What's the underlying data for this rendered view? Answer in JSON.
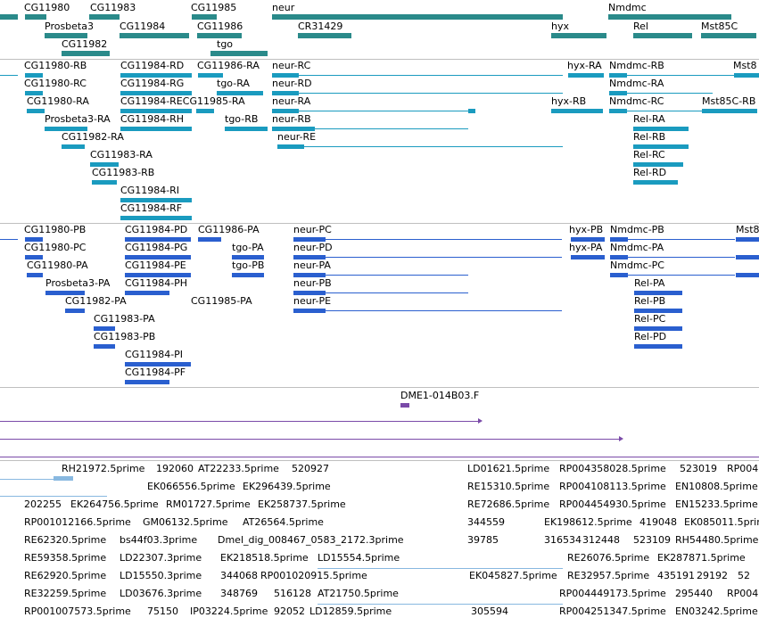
{
  "colors": {
    "gene": "#2a8a8a",
    "transcript": "#1a9bbf",
    "protein": "#2a5fcf",
    "clone": "#7a4aa8",
    "est": "#88b8e0",
    "separator": "#bfbfbf"
  },
  "genes": {
    "labels": [
      {
        "text": "CG11980"
      },
      {
        "text": "CG11983"
      },
      {
        "text": "CG11985"
      },
      {
        "text": "neur"
      },
      {
        "text": "Nmdmc"
      },
      {
        "text": "Prosbeta3"
      },
      {
        "text": "CG11984"
      },
      {
        "text": "CG11986"
      },
      {
        "text": "CR31429"
      },
      {
        "text": "hyx"
      },
      {
        "text": "Rel"
      },
      {
        "text": "Mst85C"
      },
      {
        "text": "CG11982"
      },
      {
        "text": "tgo"
      }
    ]
  },
  "transcripts": {
    "labels": [
      {
        "text": "CG11980-RB"
      },
      {
        "text": "CG11984-RD"
      },
      {
        "text": "CG11986-RA"
      },
      {
        "text": "neur-RC"
      },
      {
        "text": "hyx-RA"
      },
      {
        "text": "Nmdmc-RB"
      },
      {
        "text": "Mst8"
      },
      {
        "text": "CG11980-RC"
      },
      {
        "text": "CG11984-RG"
      },
      {
        "text": "tgo-RA"
      },
      {
        "text": "neur-RD"
      },
      {
        "text": "Nmdmc-RA"
      },
      {
        "text": "CG11980-RA"
      },
      {
        "text": "CG11984-RECG11985-RA"
      },
      {
        "text": "neur-RA"
      },
      {
        "text": "hyx-RB"
      },
      {
        "text": "Nmdmc-RC"
      },
      {
        "text": "Mst85C-RB"
      },
      {
        "text": "Prosbeta3-RA"
      },
      {
        "text": "CG11984-RH"
      },
      {
        "text": "tgo-RB"
      },
      {
        "text": "neur-RB"
      },
      {
        "text": "Rel-RA"
      },
      {
        "text": "CG11982-RA"
      },
      {
        "text": "neur-RE"
      },
      {
        "text": "Rel-RB"
      },
      {
        "text": "CG11983-RA"
      },
      {
        "text": "Rel-RC"
      },
      {
        "text": "CG11983-RB"
      },
      {
        "text": "Rel-RD"
      },
      {
        "text": "CG11984-RI"
      },
      {
        "text": "CG11984-RF"
      }
    ]
  },
  "proteins": {
    "labels": [
      {
        "text": "CG11980-PB"
      },
      {
        "text": "CG11984-PD"
      },
      {
        "text": "CG11986-PA"
      },
      {
        "text": "neur-PC"
      },
      {
        "text": "hyx-PB"
      },
      {
        "text": "Nmdmc-PB"
      },
      {
        "text": "Mst8"
      },
      {
        "text": "CG11980-PC"
      },
      {
        "text": "CG11984-PG"
      },
      {
        "text": "tgo-PA"
      },
      {
        "text": "neur-PD"
      },
      {
        "text": "hyx-PA"
      },
      {
        "text": "Nmdmc-PA"
      },
      {
        "text": "CG11980-PA"
      },
      {
        "text": "CG11984-PE"
      },
      {
        "text": "tgo-PB"
      },
      {
        "text": "neur-PA"
      },
      {
        "text": "Nmdmc-PC"
      },
      {
        "text": "Prosbeta3-PA"
      },
      {
        "text": "CG11984-PH"
      },
      {
        "text": "neur-PB"
      },
      {
        "text": "Rel-PA"
      },
      {
        "text": "CG11982-PA"
      },
      {
        "text": "CG11985-PA"
      },
      {
        "text": "neur-PE"
      },
      {
        "text": "Rel-PB"
      },
      {
        "text": "CG11983-PA"
      },
      {
        "text": "Rel-PC"
      },
      {
        "text": "CG11983-PB"
      },
      {
        "text": "Rel-PD"
      },
      {
        "text": "CG11984-PI"
      },
      {
        "text": "CG11984-PF"
      }
    ]
  },
  "clones": {
    "labels": [
      {
        "text": "DME1-014B03.F"
      }
    ]
  },
  "ests": {
    "labels": [
      {
        "text": "RH21972.5prime"
      },
      {
        "text": "192060"
      },
      {
        "text": "AT22233.5prime"
      },
      {
        "text": "520927"
      },
      {
        "text": "LD01621.5prime"
      },
      {
        "text": "RP004358028.5prime"
      },
      {
        "text": "523019"
      },
      {
        "text": "RP004"
      },
      {
        "text": "EK066556.5prime"
      },
      {
        "text": "EK296439.5prime"
      },
      {
        "text": "RE15310.5prime"
      },
      {
        "text": "RP004108113.5prime"
      },
      {
        "text": "EN10808.5prime"
      },
      {
        "text": "202255"
      },
      {
        "text": "EK264756.5prime"
      },
      {
        "text": "RM01727.5prime"
      },
      {
        "text": "EK258737.5prime"
      },
      {
        "text": "RE72686.5prime"
      },
      {
        "text": "RP004454930.5prime"
      },
      {
        "text": "EN15233.5prime"
      },
      {
        "text": "RP001012166.5prime"
      },
      {
        "text": "GM06132.5prime"
      },
      {
        "text": "AT26564.5prime"
      },
      {
        "text": "344559"
      },
      {
        "text": "EK198612.5prime"
      },
      {
        "text": "419048"
      },
      {
        "text": "EK085011.5prime"
      },
      {
        "text": "RE62320.5prime"
      },
      {
        "text": "bs44f03.3prime"
      },
      {
        "text": "Dmel_dig_008467_0583_2172.3prime"
      },
      {
        "text": "39785"
      },
      {
        "text": "316534"
      },
      {
        "text": "312448"
      },
      {
        "text": "523109"
      },
      {
        "text": "RH54480.5prime"
      },
      {
        "text": "RE59358.5prime"
      },
      {
        "text": "LD22307.3prime"
      },
      {
        "text": "EK218518.5prime"
      },
      {
        "text": "LD15554.5prime"
      },
      {
        "text": "RE26076.5prime"
      },
      {
        "text": "EK287871.5prime"
      },
      {
        "text": "RE62920.5prime"
      },
      {
        "text": "LD15550.3prime"
      },
      {
        "text": "344068"
      },
      {
        "text": "RP001020915.5prime"
      },
      {
        "text": "EK045827.5prime"
      },
      {
        "text": "RE32957.5prime"
      },
      {
        "text": "435191"
      },
      {
        "text": "29192"
      },
      {
        "text": "52"
      },
      {
        "text": "RE32259.5prime"
      },
      {
        "text": "LD03676.3prime"
      },
      {
        "text": "348769"
      },
      {
        "text": "516128"
      },
      {
        "text": "AT21750.5prime"
      },
      {
        "text": "RP004449173.5prime"
      },
      {
        "text": "295440"
      },
      {
        "text": "RP004"
      },
      {
        "text": "RP001007573.5prime"
      },
      {
        "text": "75150"
      },
      {
        "text": "IP03224.5prime"
      },
      {
        "text": "92052"
      },
      {
        "text": "LD12859.5prime"
      },
      {
        "text": "305594"
      },
      {
        "text": "RP004251347.5prime"
      },
      {
        "text": "EN03242.5prime"
      }
    ]
  }
}
